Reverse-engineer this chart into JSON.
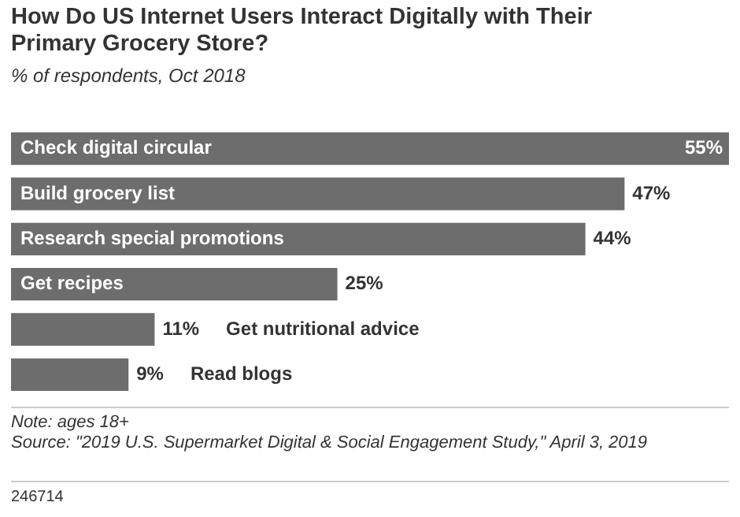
{
  "chart_data": {
    "type": "bar",
    "orientation": "horizontal",
    "title": "How Do US Internet Users Interact Digitally with Their Primary Grocery Store?",
    "subtitle": "% of respondents, Oct 2018",
    "categories": [
      "Check digital circular",
      "Build grocery list",
      "Research special promotions",
      "Get recipes",
      "Get nutritional advice",
      "Read blogs"
    ],
    "values": [
      55,
      47,
      44,
      25,
      11,
      9
    ],
    "value_labels": [
      "55%",
      "47%",
      "44%",
      "25%",
      "11%",
      "9%"
    ],
    "color": "#6d6d6d",
    "legend": false,
    "annotations": [
      "Note: ages 18+",
      "Source: \"2019 U.S. Supermarket Digital & Social Engagement Study,\" April 3, 2019",
      "246714"
    ]
  }
}
